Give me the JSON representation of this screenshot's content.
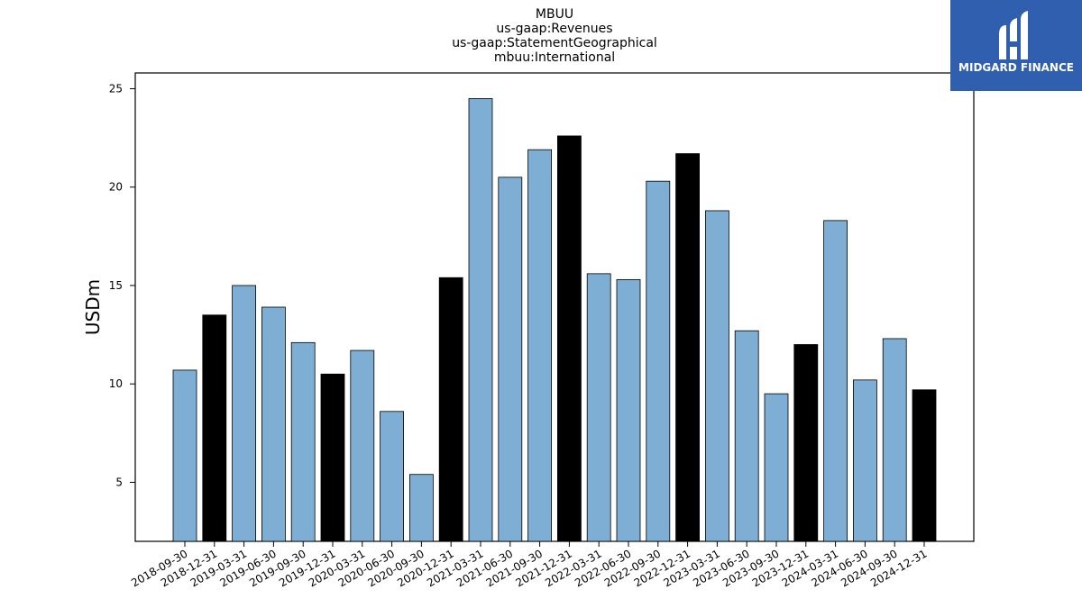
{
  "chart_data": {
    "type": "bar",
    "title_lines": [
      "MBUU",
      "us-gaap:Revenues",
      "us-gaap:StatementGeographical",
      "mbuu:International"
    ],
    "ylabel": "USDm",
    "xlabel": "",
    "ylim": [
      2,
      25.8
    ],
    "yticks": [
      5,
      10,
      15,
      20,
      25
    ],
    "grid": false,
    "categories": [
      "2018-09-30",
      "2018-12-31",
      "2019-03-31",
      "2019-06-30",
      "2019-09-30",
      "2019-12-31",
      "2020-03-31",
      "2020-06-30",
      "2020-09-30",
      "2020-12-31",
      "2021-03-31",
      "2021-06-30",
      "2021-09-30",
      "2021-12-31",
      "2022-03-31",
      "2022-06-30",
      "2022-09-30",
      "2022-12-31",
      "2023-03-31",
      "2023-06-30",
      "2023-09-30",
      "2023-12-31",
      "2024-03-31",
      "2024-06-30",
      "2024-09-30",
      "2024-12-31"
    ],
    "values": [
      10.7,
      13.5,
      15.0,
      13.9,
      12.1,
      10.5,
      11.7,
      8.6,
      5.4,
      15.4,
      24.5,
      20.5,
      21.9,
      22.6,
      15.6,
      15.3,
      20.3,
      21.7,
      18.8,
      12.7,
      9.5,
      12.0,
      18.3,
      10.2,
      12.3,
      9.7
    ],
    "bar_colors": {
      "quarter": "#7eaed4",
      "year_end": "#000000"
    }
  },
  "logo": {
    "text": "MIDGARD FINANCE"
  }
}
